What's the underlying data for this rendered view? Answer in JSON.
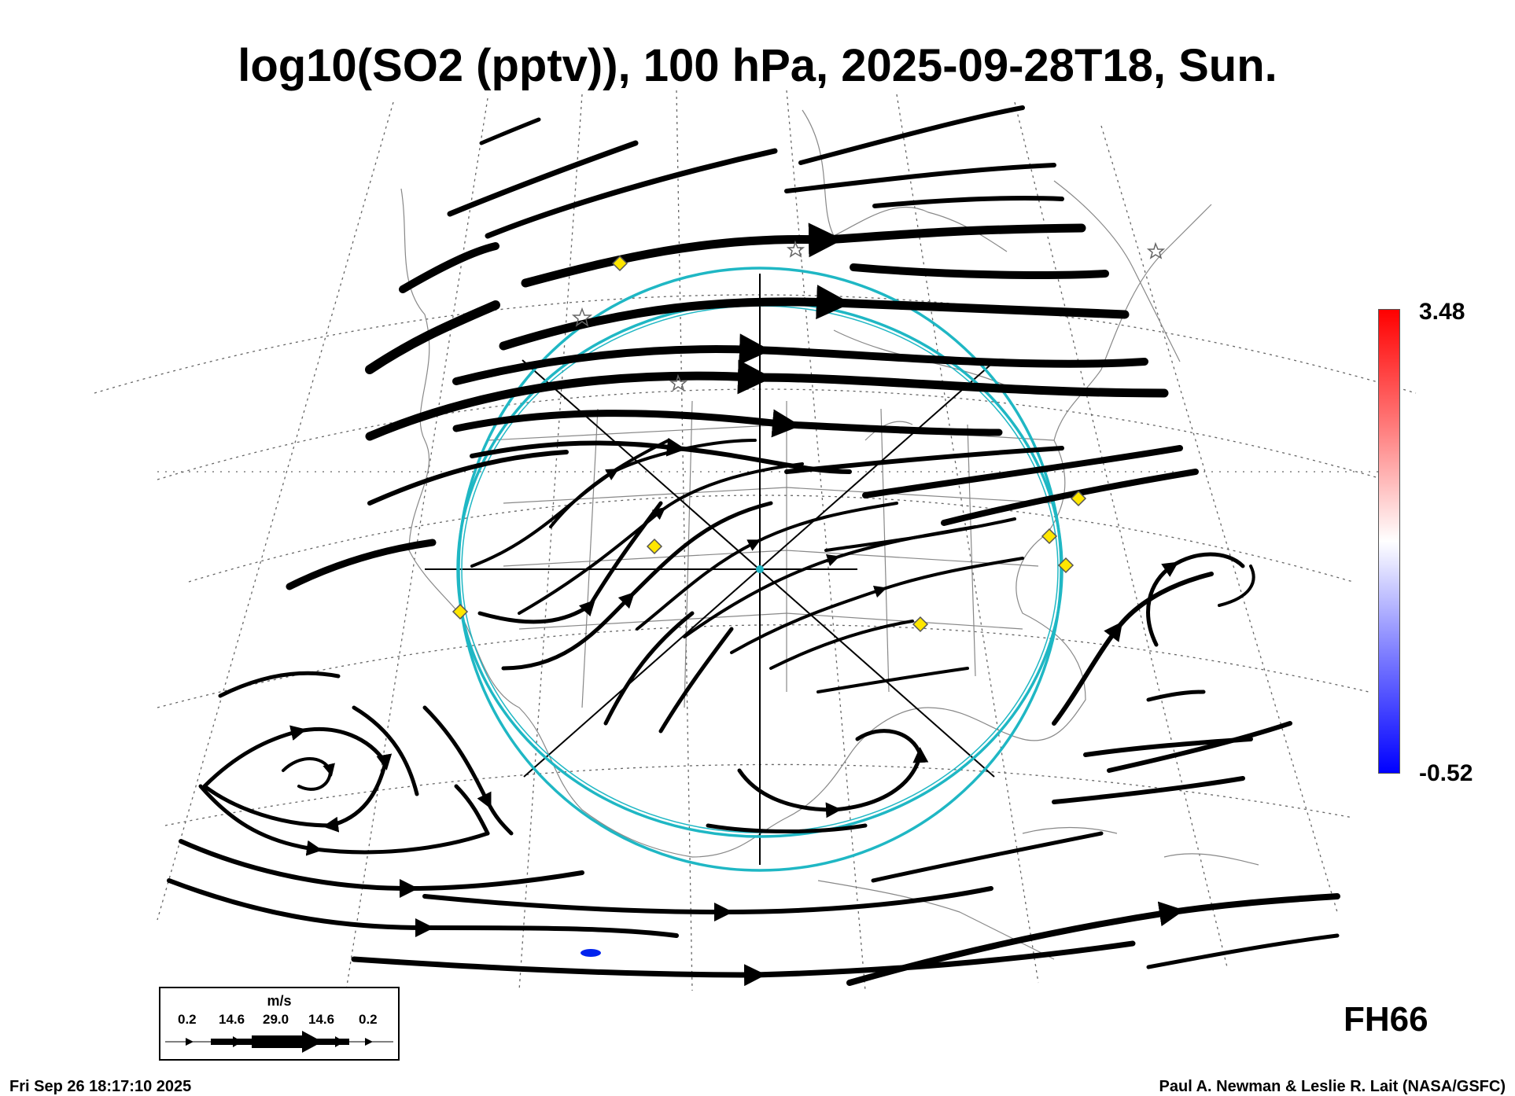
{
  "title": "log10(SO2 (pptv)), 100 hPa, 2025-09-28T18, Sun.",
  "colorbar": {
    "max_label": "3.48",
    "min_label": "-0.52",
    "colors": [
      "#ff0000",
      "#ffffff",
      "#0000ff"
    ]
  },
  "forecast_hour": "FH66",
  "footer": {
    "timestamp": "Fri Sep 26 18:17:10 2025",
    "credit": "Paul A. Newman & Leslie R. Lait (NASA/GSFC)"
  },
  "wind_legend": {
    "unit": "m/s",
    "ticks": [
      "0.2",
      "14.6",
      "29.0",
      "14.6",
      "0.2"
    ]
  },
  "map": {
    "ring_color": "#1fb7c4",
    "marker_color": "#ffe600",
    "streamline_color": "#000000",
    "so2_blob_color": "#0022ee"
  }
}
